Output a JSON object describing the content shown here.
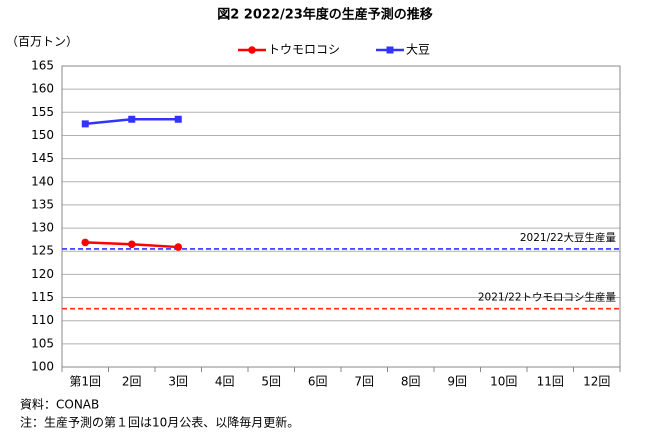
{
  "chart_data": {
    "type": "line",
    "title": "図2 2022/23年度の生産予測の推移",
    "y_axis_label": "（百万トン）",
    "categories": [
      "第1回",
      "2回",
      "3回",
      "4回",
      "5回",
      "6回",
      "7回",
      "8回",
      "9回",
      "10回",
      "11回",
      "12回"
    ],
    "series": [
      {
        "name": "トウモロコシ",
        "color": "#ff0000",
        "marker": "circle",
        "values": [
          126.9,
          126.5,
          125.9,
          null,
          null,
          null,
          null,
          null,
          null,
          null,
          null,
          null
        ]
      },
      {
        "name": "大豆",
        "color": "#3333ff",
        "marker": "square",
        "values": [
          152.5,
          153.5,
          153.5,
          null,
          null,
          null,
          null,
          null,
          null,
          null,
          null,
          null
        ]
      }
    ],
    "reference_lines": [
      {
        "label": "2021/22大豆生産量",
        "value": 125.5,
        "color": "#3333ff"
      },
      {
        "label": "2021/22トウモロコシ生産量",
        "value": 112.6,
        "color": "#ff3300"
      }
    ],
    "ylim": [
      100,
      165
    ],
    "yticks": [
      100,
      105,
      110,
      115,
      120,
      125,
      130,
      135,
      140,
      145,
      150,
      155,
      160,
      165
    ],
    "grid": true,
    "legend": "top",
    "notes": [
      "資料：CONAB",
      "注：生産予測の第１回は10月公表、以降毎月更新。"
    ]
  }
}
